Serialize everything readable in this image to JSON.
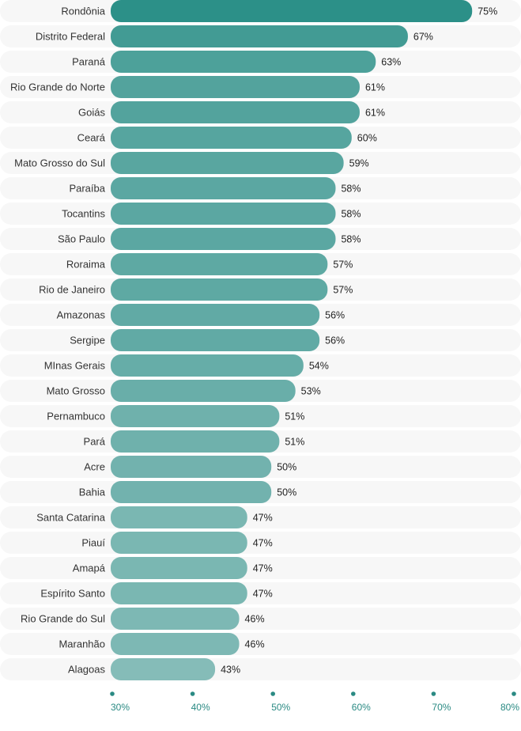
{
  "chart_data": {
    "type": "bar",
    "orientation": "horizontal",
    "title": "",
    "xlabel": "",
    "ylabel": "",
    "categories": [
      "Rondônia",
      "Distrito Federal",
      "Paraná",
      "Rio Grande do Norte",
      "Goiás",
      "Ceará",
      "Mato Grosso do Sul",
      "Paraíba",
      "Tocantins",
      "São Paulo",
      "Roraima",
      "Rio de Janeiro",
      "Amazonas",
      "Sergipe",
      "MInas Gerais",
      "Mato Grosso",
      "Pernambuco",
      "Pará",
      "Acre",
      "Bahia",
      "Santa Catarina",
      "Piauí",
      "Amapá",
      "Espírito Santo",
      "Rio Grande do Sul",
      "Maranhão",
      "Alagoas"
    ],
    "values": [
      75,
      67,
      63,
      61,
      61,
      60,
      59,
      58,
      58,
      58,
      57,
      57,
      56,
      56,
      54,
      53,
      51,
      51,
      50,
      50,
      47,
      47,
      47,
      47,
      46,
      46,
      43
    ],
    "value_labels": [
      "75%",
      "67%",
      "63%",
      "61%",
      "61%",
      "60%",
      "59%",
      "58%",
      "58%",
      "58%",
      "57%",
      "57%",
      "56%",
      "56%",
      "54%",
      "53%",
      "51%",
      "51%",
      "50%",
      "50%",
      "47%",
      "47%",
      "47%",
      "47%",
      "46%",
      "46%",
      "43%"
    ],
    "xlim": [
      30,
      80
    ],
    "xticks": [
      30,
      40,
      50,
      60,
      70,
      80
    ],
    "xtick_labels": [
      "30%",
      "40%",
      "50%",
      "60%",
      "70%",
      "80%"
    ],
    "grid": false,
    "legend": "none",
    "colors": {
      "high": "#2c9088",
      "low": "#85bcb8",
      "tick": "#2a8a83",
      "row_bg": "#f7f7f7"
    }
  }
}
